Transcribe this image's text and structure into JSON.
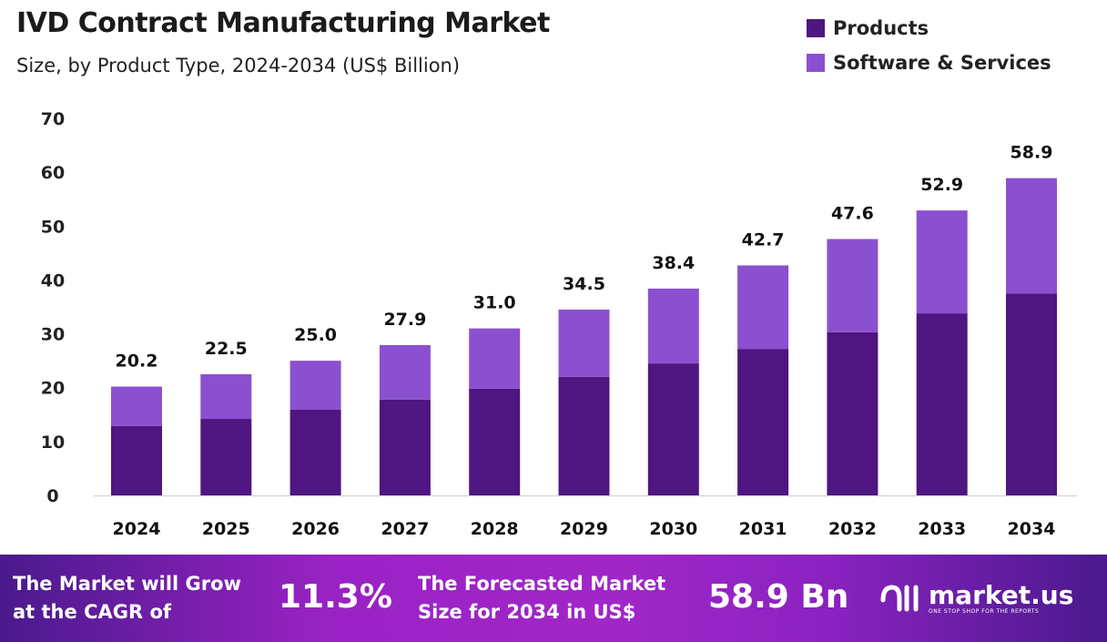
{
  "chart_data": {
    "type": "bar",
    "stacked": true,
    "title": "IVD Contract Manufacturing Market",
    "subtitle": "Size, by Product Type, 2024-2034 (US$ Billion)",
    "categories": [
      "2024",
      "2025",
      "2026",
      "2027",
      "2028",
      "2029",
      "2030",
      "2031",
      "2032",
      "2033",
      "2034"
    ],
    "series": [
      {
        "name": "Products",
        "color": "#4f1580",
        "values": [
          12.9,
          14.2,
          15.9,
          17.8,
          19.8,
          22.0,
          24.5,
          27.2,
          30.3,
          33.8,
          37.5
        ]
      },
      {
        "name": "Software & Services",
        "color": "#8b50cf",
        "values": [
          7.3,
          8.3,
          9.1,
          10.1,
          11.2,
          12.5,
          13.9,
          15.5,
          17.3,
          19.1,
          21.4
        ]
      }
    ],
    "totals": [
      "20.2",
      "22.5",
      "25.0",
      "27.9",
      "31.0",
      "34.5",
      "38.4",
      "42.7",
      "47.6",
      "52.9",
      "58.9"
    ],
    "ylim": [
      0,
      70
    ],
    "yticks": [
      "0",
      "10",
      "20",
      "30",
      "40",
      "50",
      "60",
      "70"
    ],
    "grid": false,
    "legend_position": "top-right"
  },
  "footer": {
    "cagr_label_1": "The Market will Grow",
    "cagr_label_2": "at the CAGR of",
    "cagr_value": "11.3%",
    "forecast_label_1": "The Forecasted Market",
    "forecast_label_2": "Size for 2034 in US$",
    "forecast_value": "58.9 Bn",
    "logo_name": "market.us",
    "logo_tagline": "ONE STOP SHOP FOR THE REPORTS"
  }
}
